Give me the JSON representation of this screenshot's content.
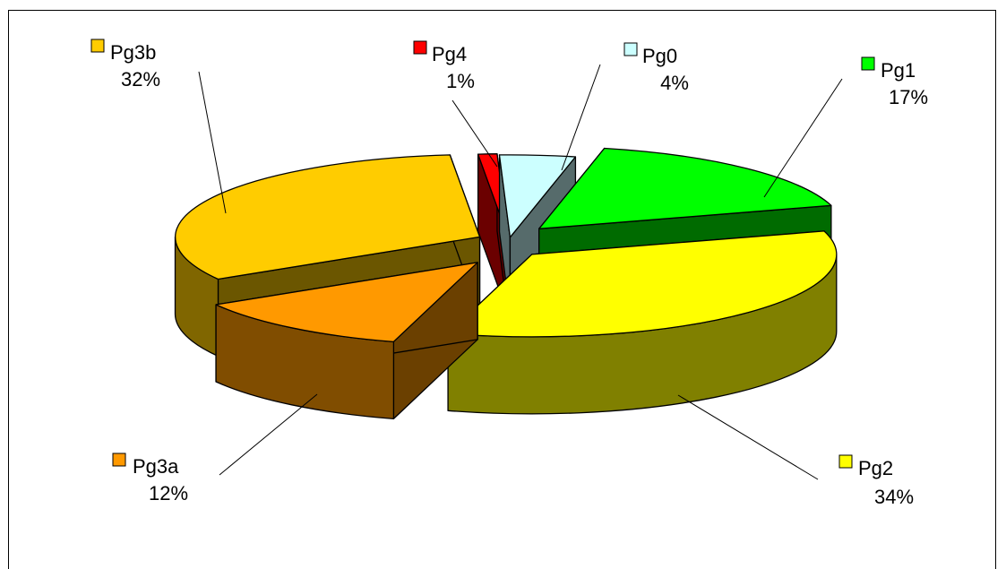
{
  "chart_data": {
    "type": "pie",
    "labels": [
      "Pg0",
      "Pg1",
      "Pg2",
      "Pg3a",
      "Pg3b",
      "Pg4"
    ],
    "values": [
      4,
      17,
      34,
      12,
      32,
      1
    ],
    "percent_labels": [
      "4%",
      "17%",
      "34%",
      "12%",
      "32%",
      "1%"
    ],
    "colors": [
      "#ccffff",
      "#00ff00",
      "#ffff00",
      "#ff9900",
      "#ffcc00",
      "#ff0000"
    ],
    "exploded": true,
    "three_d": true
  }
}
